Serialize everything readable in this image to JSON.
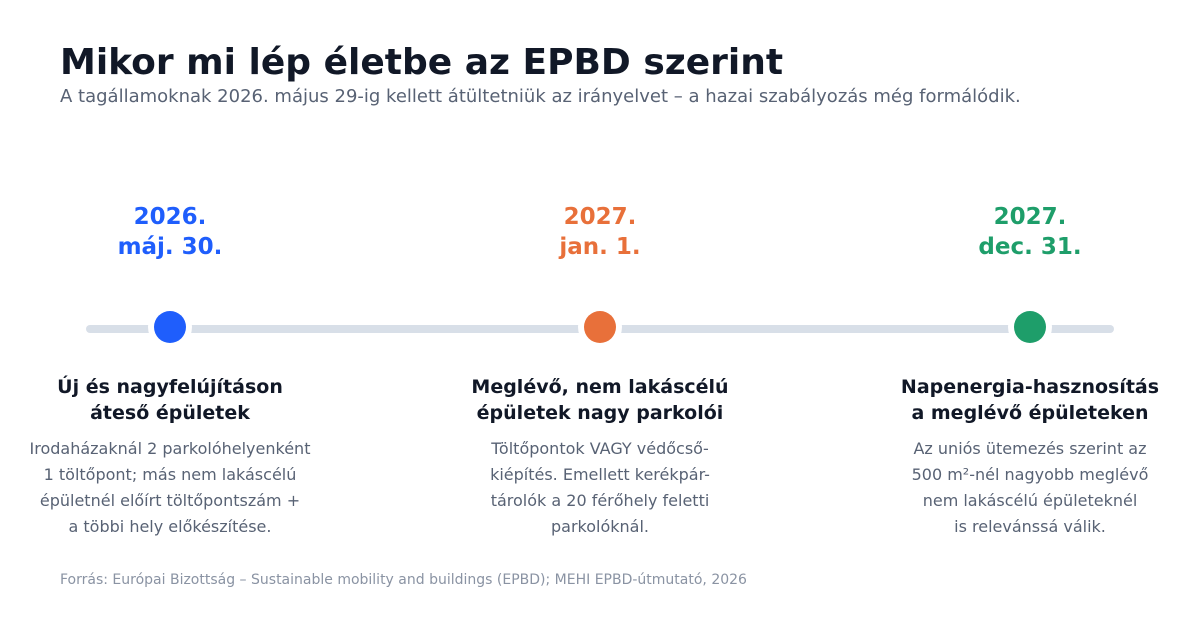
{
  "title": "Mikor mi lép életbe az EPBD szerint",
  "subtitle": "A tagállamoknak 2026. május 29-ig kellett átültetniük az irányelvet – a hazai szabályozás még formálódik.",
  "milestones": [
    {
      "date": "2026.\nmáj. 30.",
      "color": "#1f5efc",
      "heading": "Új és nagyfelújításon\náteső épületek",
      "description": "Irodaházaknál 2 parkolóhelyenként\n1 töltőpont; más nem lakáscélú\népületnél előírt töltőpontszám +\na többi hely előkészítése."
    },
    {
      "date": "2027.\njan. 1.",
      "color": "#e8703a",
      "heading": "Meglévő, nem lakáscélú\népületek nagy parkolói",
      "description": "Töltőpontok VAGY védőcső-\nkiépítés. Emellett kerékpár-\ntárolók a 20 férőhely feletti\nparkolóknál."
    },
    {
      "date": "2027.\ndec. 31.",
      "color": "#1e9e6a",
      "heading": "Napenergia-hasznosítás\na meglévő épületeken",
      "description": "Az uniós ütemezés szerint az\n500 m²-nél nagyobb meglévő\nnem lakáscélú épületeknél\nis relevánssá válik."
    }
  ],
  "source": "Forrás: Európai Bizottság – Sustainable mobility and buildings (EPBD); MEHI EPBD-útmutató, 2026"
}
